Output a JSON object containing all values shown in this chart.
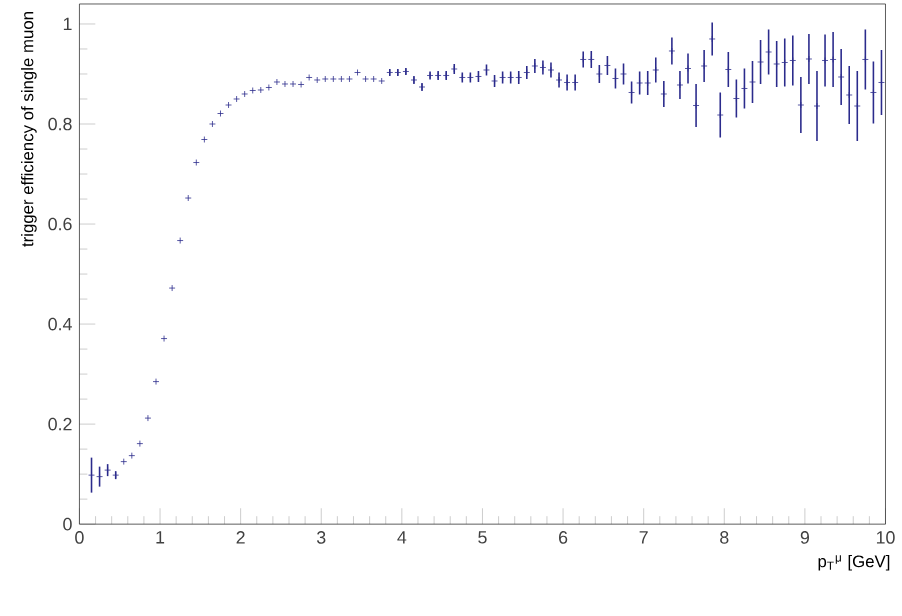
{
  "chart_data": {
    "type": "scatter",
    "ylabel": "trigger efficiency of single muon",
    "xlabel": "p$_{T}$$^{μ}$ [GeV]",
    "x": [
      0.15,
      0.25,
      0.35,
      0.45,
      0.55,
      0.65,
      0.75,
      0.85,
      0.95,
      1.05,
      1.15,
      1.25,
      1.35,
      1.45,
      1.55,
      1.65,
      1.75,
      1.85,
      1.95,
      2.05,
      2.15,
      2.25,
      2.35,
      2.45,
      2.55,
      2.65,
      2.75,
      2.85,
      2.95,
      3.05,
      3.15,
      3.25,
      3.35,
      3.45,
      3.55,
      3.65,
      3.75,
      3.85,
      3.95,
      4.05,
      4.15,
      4.25,
      4.35,
      4.45,
      4.55,
      4.65,
      4.75,
      4.85,
      4.95,
      5.05,
      5.15,
      5.25,
      5.35,
      5.45,
      5.55,
      5.65,
      5.75,
      5.85,
      5.95,
      6.05,
      6.15,
      6.25,
      6.35,
      6.45,
      6.55,
      6.65,
      6.75,
      6.85,
      6.95,
      7.05,
      7.15,
      7.25,
      7.35,
      7.45,
      7.55,
      7.65,
      7.75,
      7.85,
      7.95,
      8.05,
      8.15,
      8.25,
      8.35,
      8.45,
      8.55,
      8.65,
      8.75,
      8.85,
      8.95,
      9.05,
      9.15,
      9.25,
      9.35,
      9.45,
      9.55,
      9.65,
      9.75,
      9.85,
      9.95
    ],
    "values": [
      0.098,
      0.095,
      0.108,
      0.098,
      0.125,
      0.137,
      0.161,
      0.212,
      0.285,
      0.371,
      0.472,
      0.567,
      0.652,
      0.723,
      0.769,
      0.8,
      0.821,
      0.838,
      0.85,
      0.86,
      0.867,
      0.868,
      0.873,
      0.884,
      0.88,
      0.88,
      0.879,
      0.893,
      0.888,
      0.89,
      0.89,
      0.89,
      0.89,
      0.903,
      0.89,
      0.89,
      0.886,
      0.903,
      0.903,
      0.905,
      0.888,
      0.874,
      0.897,
      0.897,
      0.897,
      0.91,
      0.893,
      0.893,
      0.895,
      0.908,
      0.886,
      0.893,
      0.893,
      0.893,
      0.903,
      0.916,
      0.913,
      0.908,
      0.888,
      0.883,
      0.883,
      0.929,
      0.929,
      0.9,
      0.917,
      0.891,
      0.9,
      0.863,
      0.882,
      0.882,
      0.908,
      0.86,
      0.946,
      0.878,
      0.911,
      0.837,
      0.916,
      0.97,
      0.818,
      0.909,
      0.851,
      0.871,
      0.884,
      0.924,
      0.944,
      0.92,
      0.923,
      0.927,
      0.838,
      0.93,
      0.836,
      0.927,
      0.929,
      0.894,
      0.858,
      0.836,
      0.929,
      0.863,
      0.883
    ],
    "errors": [
      0.035,
      0.02,
      0.012,
      0.008,
      null,
      null,
      null,
      null,
      null,
      null,
      null,
      null,
      null,
      null,
      null,
      null,
      null,
      null,
      null,
      null,
      null,
      null,
      null,
      null,
      null,
      null,
      null,
      null,
      null,
      null,
      null,
      null,
      null,
      null,
      null,
      null,
      null,
      0.007,
      0.007,
      0.007,
      0.008,
      0.008,
      0.008,
      0.009,
      0.009,
      0.01,
      0.01,
      0.01,
      0.011,
      0.011,
      0.012,
      0.012,
      0.012,
      0.013,
      0.013,
      0.014,
      0.014,
      0.015,
      0.015,
      0.016,
      0.016,
      0.016,
      0.017,
      0.018,
      0.019,
      0.02,
      0.021,
      0.022,
      0.023,
      0.024,
      0.025,
      0.026,
      0.027,
      0.028,
      0.03,
      0.043,
      0.032,
      0.033,
      0.045,
      0.035,
      0.038,
      0.04,
      0.042,
      0.044,
      0.045,
      0.046,
      0.048,
      0.05,
      0.056,
      0.05,
      0.07,
      0.052,
      0.055,
      0.056,
      0.058,
      0.07,
      0.06,
      0.062,
      0.065
    ],
    "color": "#2b2b8c",
    "marker": "cross",
    "grid": false,
    "xlim": [
      0,
      10
    ],
    "ylim": [
      0,
      1.04
    ],
    "xticks": [
      0,
      1,
      2,
      3,
      4,
      5,
      6,
      7,
      8,
      9,
      10
    ],
    "yticks": [
      0,
      0.2,
      0.4,
      0.6,
      0.8,
      1
    ]
  }
}
